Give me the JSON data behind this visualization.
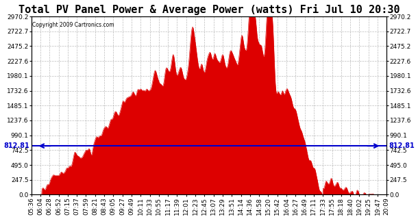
{
  "title": "Total PV Panel Power & Average Power (watts) Fri Jul 10 20:30",
  "copyright": "Copyright 2009 Cartronics.com",
  "avg_power": 812.81,
  "y_max": 2970.2,
  "y_min": 0.0,
  "y_ticks": [
    0.0,
    247.5,
    495.0,
    742.5,
    990.1,
    1237.6,
    1485.1,
    1732.6,
    1980.1,
    2227.6,
    2475.2,
    2722.7,
    2970.2
  ],
  "fill_color": "#dd0000",
  "line_color": "#0000cc",
  "bg_color": "#ffffff",
  "grid_color": "#aaaaaa",
  "x_labels": [
    "05:36",
    "06:04",
    "06:28",
    "06:52",
    "07:15",
    "07:37",
    "07:59",
    "08:21",
    "08:43",
    "09:05",
    "09:27",
    "09:49",
    "10:11",
    "10:33",
    "10:55",
    "11:17",
    "11:39",
    "12:01",
    "12:23",
    "12:45",
    "13:07",
    "13:29",
    "13:51",
    "14:14",
    "14:36",
    "14:58",
    "15:20",
    "15:42",
    "16:04",
    "16:27",
    "16:49",
    "17:11",
    "17:33",
    "17:55",
    "18:18",
    "18:40",
    "19:02",
    "19:25",
    "19:47",
    "20:09"
  ],
  "title_fontsize": 11,
  "tick_fontsize": 6.5,
  "avg_label": "812.81"
}
